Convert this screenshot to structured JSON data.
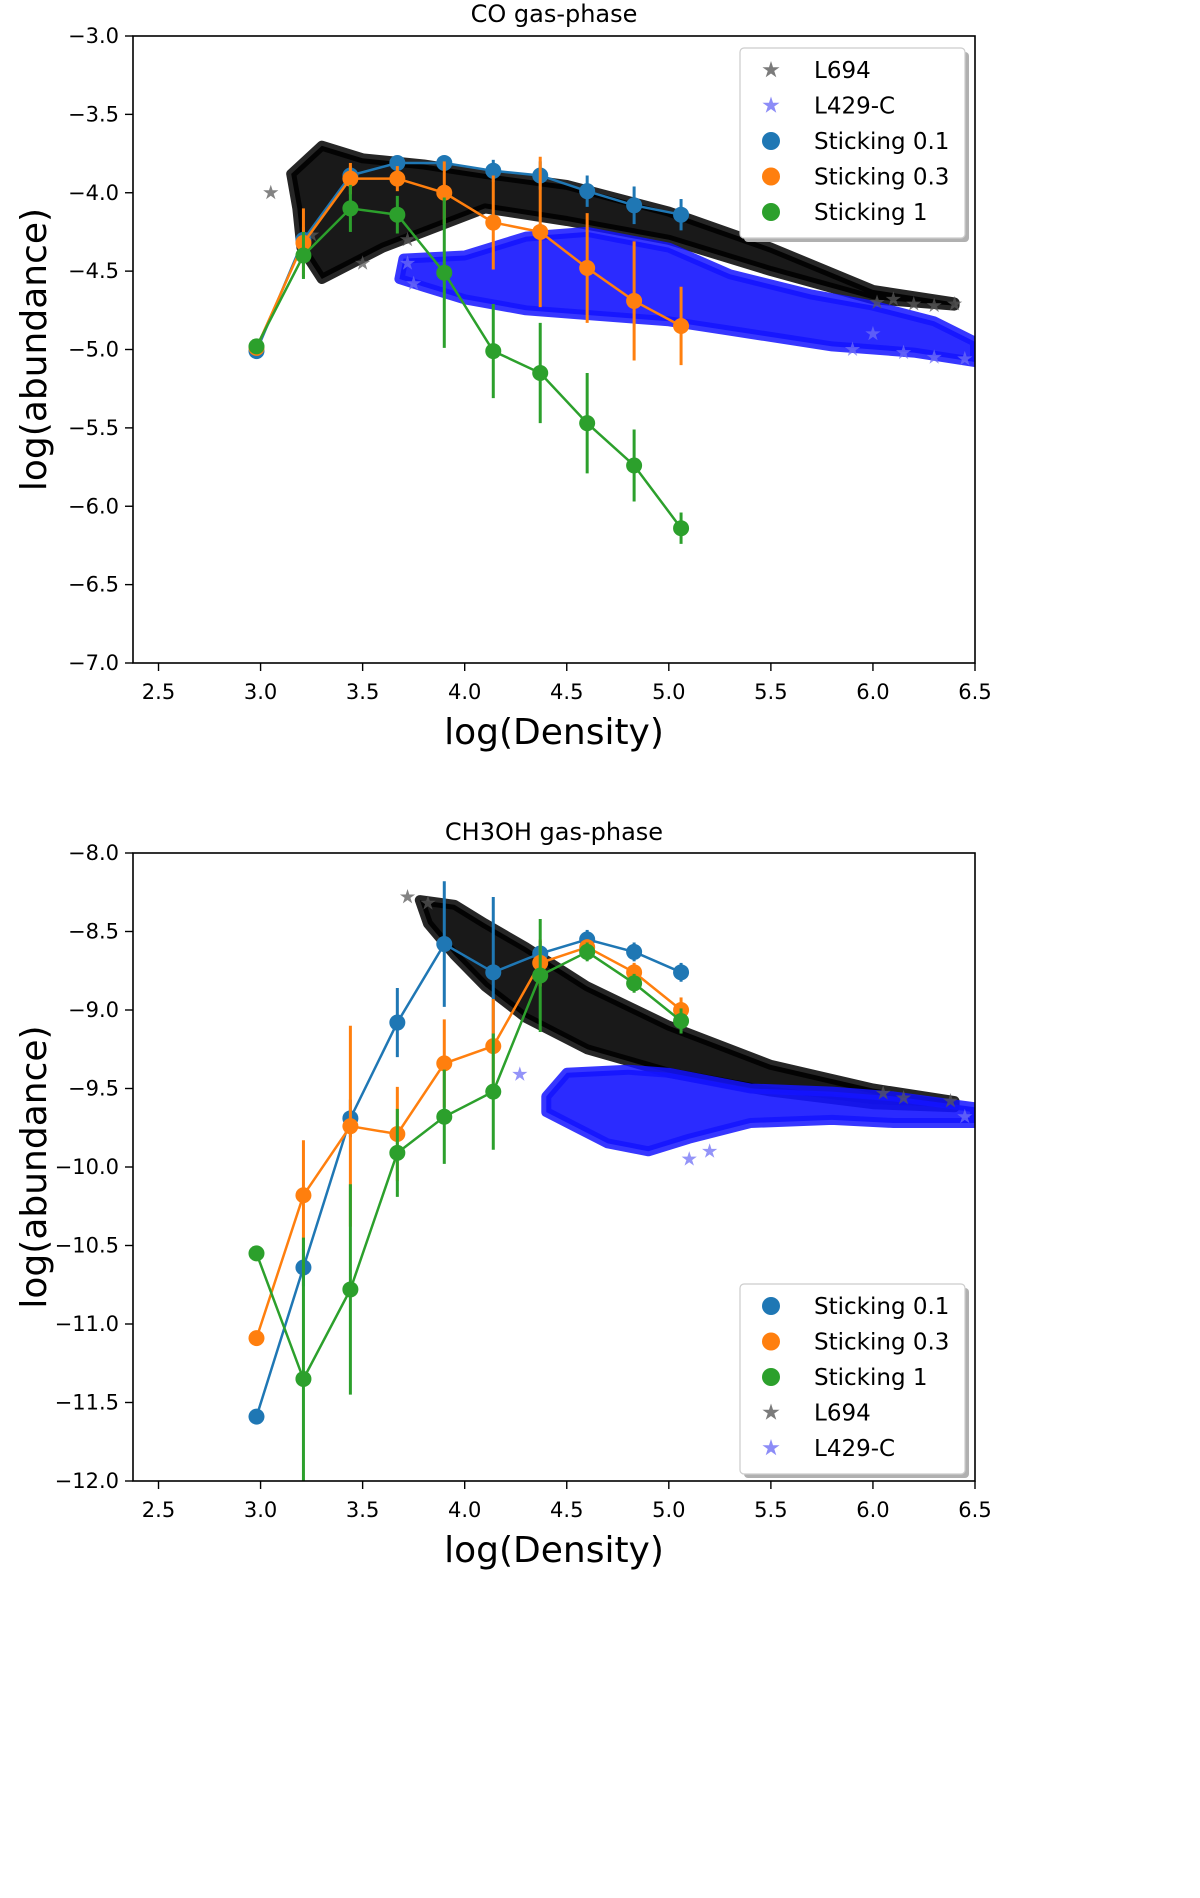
{
  "chart_data": [
    {
      "type": "scatter",
      "title": "CO gas-phase",
      "xlabel": "log(Density)",
      "ylabel": "log(abundance)",
      "xlim": [
        2.375,
        6.5
      ],
      "ylim": [
        -7.0,
        -3.0
      ],
      "xticks": [
        "2.5",
        "3.0",
        "3.5",
        "4.0",
        "4.5",
        "5.0",
        "5.5",
        "6.0",
        "6.5"
      ],
      "yticks": [
        "−3.0",
        "−3.5",
        "−4.0",
        "−4.5",
        "−5.0",
        "−5.5",
        "−6.0",
        "−6.5",
        "−7.0"
      ],
      "legend_position": "top-right",
      "legend": [
        {
          "label": "L694",
          "marker": "star",
          "color": "#5a5a5a"
        },
        {
          "label": "L429-C",
          "marker": "star",
          "color": "#6f6ff5"
        },
        {
          "label": "Sticking 0.1",
          "marker": "circle",
          "color": "#1f77b4"
        },
        {
          "label": "Sticking 0.3",
          "marker": "circle",
          "color": "#ff7f0e"
        },
        {
          "label": "Sticking 1",
          "marker": "circle",
          "color": "#2ca02c"
        }
      ],
      "series": [
        {
          "name": "Sticking 0.1",
          "color": "#1f77b4",
          "x": [
            2.98,
            3.21,
            3.44,
            3.67,
            3.9,
            4.14,
            4.37,
            4.6,
            4.83,
            5.06
          ],
          "y": [
            -5.01,
            -4.3,
            -3.89,
            -3.81,
            -3.81,
            -3.86,
            -3.89,
            -3.99,
            -4.08,
            -4.14
          ],
          "err": [
            0.02,
            0.08,
            0.06,
            0.04,
            0.04,
            0.07,
            0.09,
            0.1,
            0.12,
            0.1
          ]
        },
        {
          "name": "Sticking 0.3",
          "color": "#ff7f0e",
          "x": [
            2.98,
            3.21,
            3.44,
            3.67,
            3.9,
            4.14,
            4.37,
            4.6,
            4.83,
            5.06
          ],
          "y": [
            -4.99,
            -4.32,
            -3.91,
            -3.91,
            -4.0,
            -4.19,
            -4.25,
            -4.48,
            -4.69,
            -4.85
          ],
          "err": [
            0.02,
            0.22,
            0.1,
            0.08,
            0.2,
            0.3,
            0.48,
            0.35,
            0.38,
            0.25
          ]
        },
        {
          "name": "Sticking 1",
          "color": "#2ca02c",
          "x": [
            2.98,
            3.21,
            3.44,
            3.67,
            3.9,
            4.14,
            4.37,
            4.6,
            4.83,
            5.06
          ],
          "y": [
            -4.98,
            -4.4,
            -4.1,
            -4.14,
            -4.51,
            -5.01,
            -5.15,
            -5.47,
            -5.74,
            -6.14
          ],
          "err": [
            0.02,
            0.15,
            0.15,
            0.12,
            0.48,
            0.3,
            0.32,
            0.32,
            0.23,
            0.1
          ]
        }
      ],
      "clouds": [
        {
          "name": "L694",
          "color": "#000000",
          "upper": [
            [
              3.15,
              -3.88
            ],
            [
              3.3,
              -3.7
            ],
            [
              3.5,
              -3.78
            ],
            [
              3.8,
              -3.82
            ],
            [
              4.1,
              -3.88
            ],
            [
              4.5,
              -3.95
            ],
            [
              5.0,
              -4.12
            ],
            [
              5.5,
              -4.35
            ],
            [
              6.0,
              -4.62
            ],
            [
              6.4,
              -4.7
            ]
          ],
          "lower": [
            [
              6.4,
              -4.72
            ],
            [
              6.0,
              -4.68
            ],
            [
              5.5,
              -4.5
            ],
            [
              5.0,
              -4.3
            ],
            [
              4.5,
              -4.18
            ],
            [
              4.1,
              -4.1
            ],
            [
              3.8,
              -4.25
            ],
            [
              3.6,
              -4.35
            ],
            [
              3.45,
              -4.45
            ],
            [
              3.3,
              -4.55
            ],
            [
              3.2,
              -4.35
            ],
            [
              3.18,
              -4.1
            ]
          ]
        },
        {
          "name": "L429-C",
          "color": "#1414ff",
          "upper": [
            [
              3.7,
              -4.42
            ],
            [
              4.0,
              -4.4
            ],
            [
              4.3,
              -4.28
            ],
            [
              4.6,
              -4.25
            ],
            [
              5.0,
              -4.35
            ],
            [
              5.3,
              -4.52
            ],
            [
              5.7,
              -4.65
            ],
            [
              6.0,
              -4.72
            ],
            [
              6.3,
              -4.82
            ],
            [
              6.5,
              -4.95
            ]
          ],
          "lower": [
            [
              6.5,
              -5.08
            ],
            [
              6.2,
              -5.02
            ],
            [
              5.8,
              -4.98
            ],
            [
              5.3,
              -4.88
            ],
            [
              5.0,
              -4.82
            ],
            [
              4.6,
              -4.78
            ],
            [
              4.3,
              -4.75
            ],
            [
              4.0,
              -4.68
            ],
            [
              3.8,
              -4.6
            ],
            [
              3.68,
              -4.55
            ]
          ]
        }
      ],
      "star_points": [
        {
          "name": "L694",
          "color": "#5a5a5a",
          "x": [
            3.05,
            3.25,
            3.5,
            3.72,
            6.02,
            6.1,
            6.2,
            6.3,
            6.4
          ],
          "y": [
            -4.0,
            -4.27,
            -4.45,
            -4.3,
            -4.7,
            -4.68,
            -4.71,
            -4.72,
            -4.71
          ]
        },
        {
          "name": "L429-C",
          "color": "#6f6ff5",
          "x": [
            3.72,
            3.75,
            5.9,
            6.0,
            6.15,
            6.3,
            6.45
          ],
          "y": [
            -4.45,
            -4.58,
            -5.0,
            -4.9,
            -5.02,
            -5.05,
            -5.06
          ]
        }
      ]
    },
    {
      "type": "scatter",
      "title": "CH3OH gas-phase",
      "xlabel": "log(Density)",
      "ylabel": "log(abundance)",
      "xlim": [
        2.375,
        6.5
      ],
      "ylim": [
        -12.0,
        -8.0
      ],
      "xticks": [
        "2.5",
        "3.0",
        "3.5",
        "4.0",
        "4.5",
        "5.0",
        "5.5",
        "6.0",
        "6.5"
      ],
      "yticks": [
        "−8.0",
        "−8.5",
        "−9.0",
        "−9.5",
        "−10.0",
        "−10.5",
        "−11.0",
        "−11.5",
        "−12.0"
      ],
      "legend_position": "bottom-right",
      "legend": [
        {
          "label": "Sticking 0.1",
          "marker": "circle",
          "color": "#1f77b4"
        },
        {
          "label": "Sticking 0.3",
          "marker": "circle",
          "color": "#ff7f0e"
        },
        {
          "label": "Sticking 1",
          "marker": "circle",
          "color": "#2ca02c"
        },
        {
          "label": "L694",
          "marker": "star",
          "color": "#5a5a5a"
        },
        {
          "label": "L429-C",
          "marker": "star",
          "color": "#6f6ff5"
        }
      ],
      "series": [
        {
          "name": "Sticking 0.1",
          "color": "#1f77b4",
          "x": [
            2.98,
            3.21,
            3.44,
            3.67,
            3.9,
            4.14,
            4.37,
            4.6,
            4.83,
            5.06
          ],
          "y": [
            -11.59,
            -10.64,
            -9.69,
            -9.08,
            -8.58,
            -8.76,
            -8.64,
            -8.55,
            -8.63,
            -8.76
          ],
          "err": [
            0.02,
            0.12,
            0.12,
            0.22,
            0.4,
            0.48,
            0.08,
            0.06,
            0.06,
            0.06
          ]
        },
        {
          "name": "Sticking 0.3",
          "color": "#ff7f0e",
          "x": [
            2.98,
            3.21,
            3.44,
            3.67,
            3.9,
            4.14,
            4.37,
            4.6,
            4.83,
            5.06
          ],
          "y": [
            -11.09,
            -10.18,
            -9.74,
            -9.79,
            -9.34,
            -9.23,
            -8.7,
            -8.6,
            -8.76,
            -9.0
          ],
          "err": [
            0.02,
            0.35,
            0.64,
            0.3,
            0.28,
            0.3,
            0.15,
            0.05,
            0.06,
            0.08
          ]
        },
        {
          "name": "Sticking 1",
          "color": "#2ca02c",
          "x": [
            2.98,
            3.21,
            3.44,
            3.67,
            3.9,
            4.14,
            4.37,
            4.6,
            4.83,
            5.06
          ],
          "y": [
            -10.55,
            -11.35,
            -10.78,
            -9.91,
            -9.68,
            -9.52,
            -8.78,
            -8.63,
            -8.83,
            -9.07
          ],
          "err": [
            0.02,
            0.9,
            0.67,
            0.28,
            0.3,
            0.37,
            0.36,
            0.06,
            0.06,
            0.08
          ]
        }
      ],
      "clouds": [
        {
          "name": "L694",
          "color": "#000000",
          "upper": [
            [
              3.78,
              -8.3
            ],
            [
              3.95,
              -8.33
            ],
            [
              4.1,
              -8.45
            ],
            [
              4.3,
              -8.6
            ],
            [
              4.6,
              -8.85
            ],
            [
              5.0,
              -9.1
            ],
            [
              5.5,
              -9.35
            ],
            [
              6.0,
              -9.5
            ],
            [
              6.4,
              -9.58
            ]
          ],
          "lower": [
            [
              6.4,
              -9.62
            ],
            [
              6.0,
              -9.6
            ],
            [
              5.5,
              -9.52
            ],
            [
              5.0,
              -9.4
            ],
            [
              4.6,
              -9.25
            ],
            [
              4.3,
              -9.05
            ],
            [
              4.1,
              -8.85
            ],
            [
              3.95,
              -8.65
            ],
            [
              3.82,
              -8.45
            ]
          ]
        },
        {
          "name": "L429-C",
          "color": "#1414ff",
          "upper": [
            [
              4.4,
              -9.55
            ],
            [
              4.5,
              -9.4
            ],
            [
              4.8,
              -9.38
            ],
            [
              5.0,
              -9.4
            ],
            [
              5.4,
              -9.5
            ],
            [
              5.8,
              -9.52
            ],
            [
              6.1,
              -9.55
            ],
            [
              6.5,
              -9.62
            ]
          ],
          "lower": [
            [
              6.5,
              -9.72
            ],
            [
              6.1,
              -9.72
            ],
            [
              5.8,
              -9.7
            ],
            [
              5.4,
              -9.72
            ],
            [
              5.1,
              -9.82
            ],
            [
              4.9,
              -9.9
            ],
            [
              4.7,
              -9.85
            ],
            [
              4.55,
              -9.75
            ],
            [
              4.4,
              -9.65
            ]
          ]
        }
      ],
      "star_points": [
        {
          "name": "L694",
          "color": "#5a5a5a",
          "x": [
            3.72,
            3.82,
            6.05,
            6.15,
            6.38
          ],
          "y": [
            -8.28,
            -8.32,
            -9.53,
            -9.56,
            -9.58
          ]
        },
        {
          "name": "L429-C",
          "color": "#6f6ff5",
          "x": [
            4.27,
            5.1,
            5.2,
            6.45
          ],
          "y": [
            -9.41,
            -9.95,
            -9.9,
            -9.68
          ]
        }
      ]
    }
  ]
}
